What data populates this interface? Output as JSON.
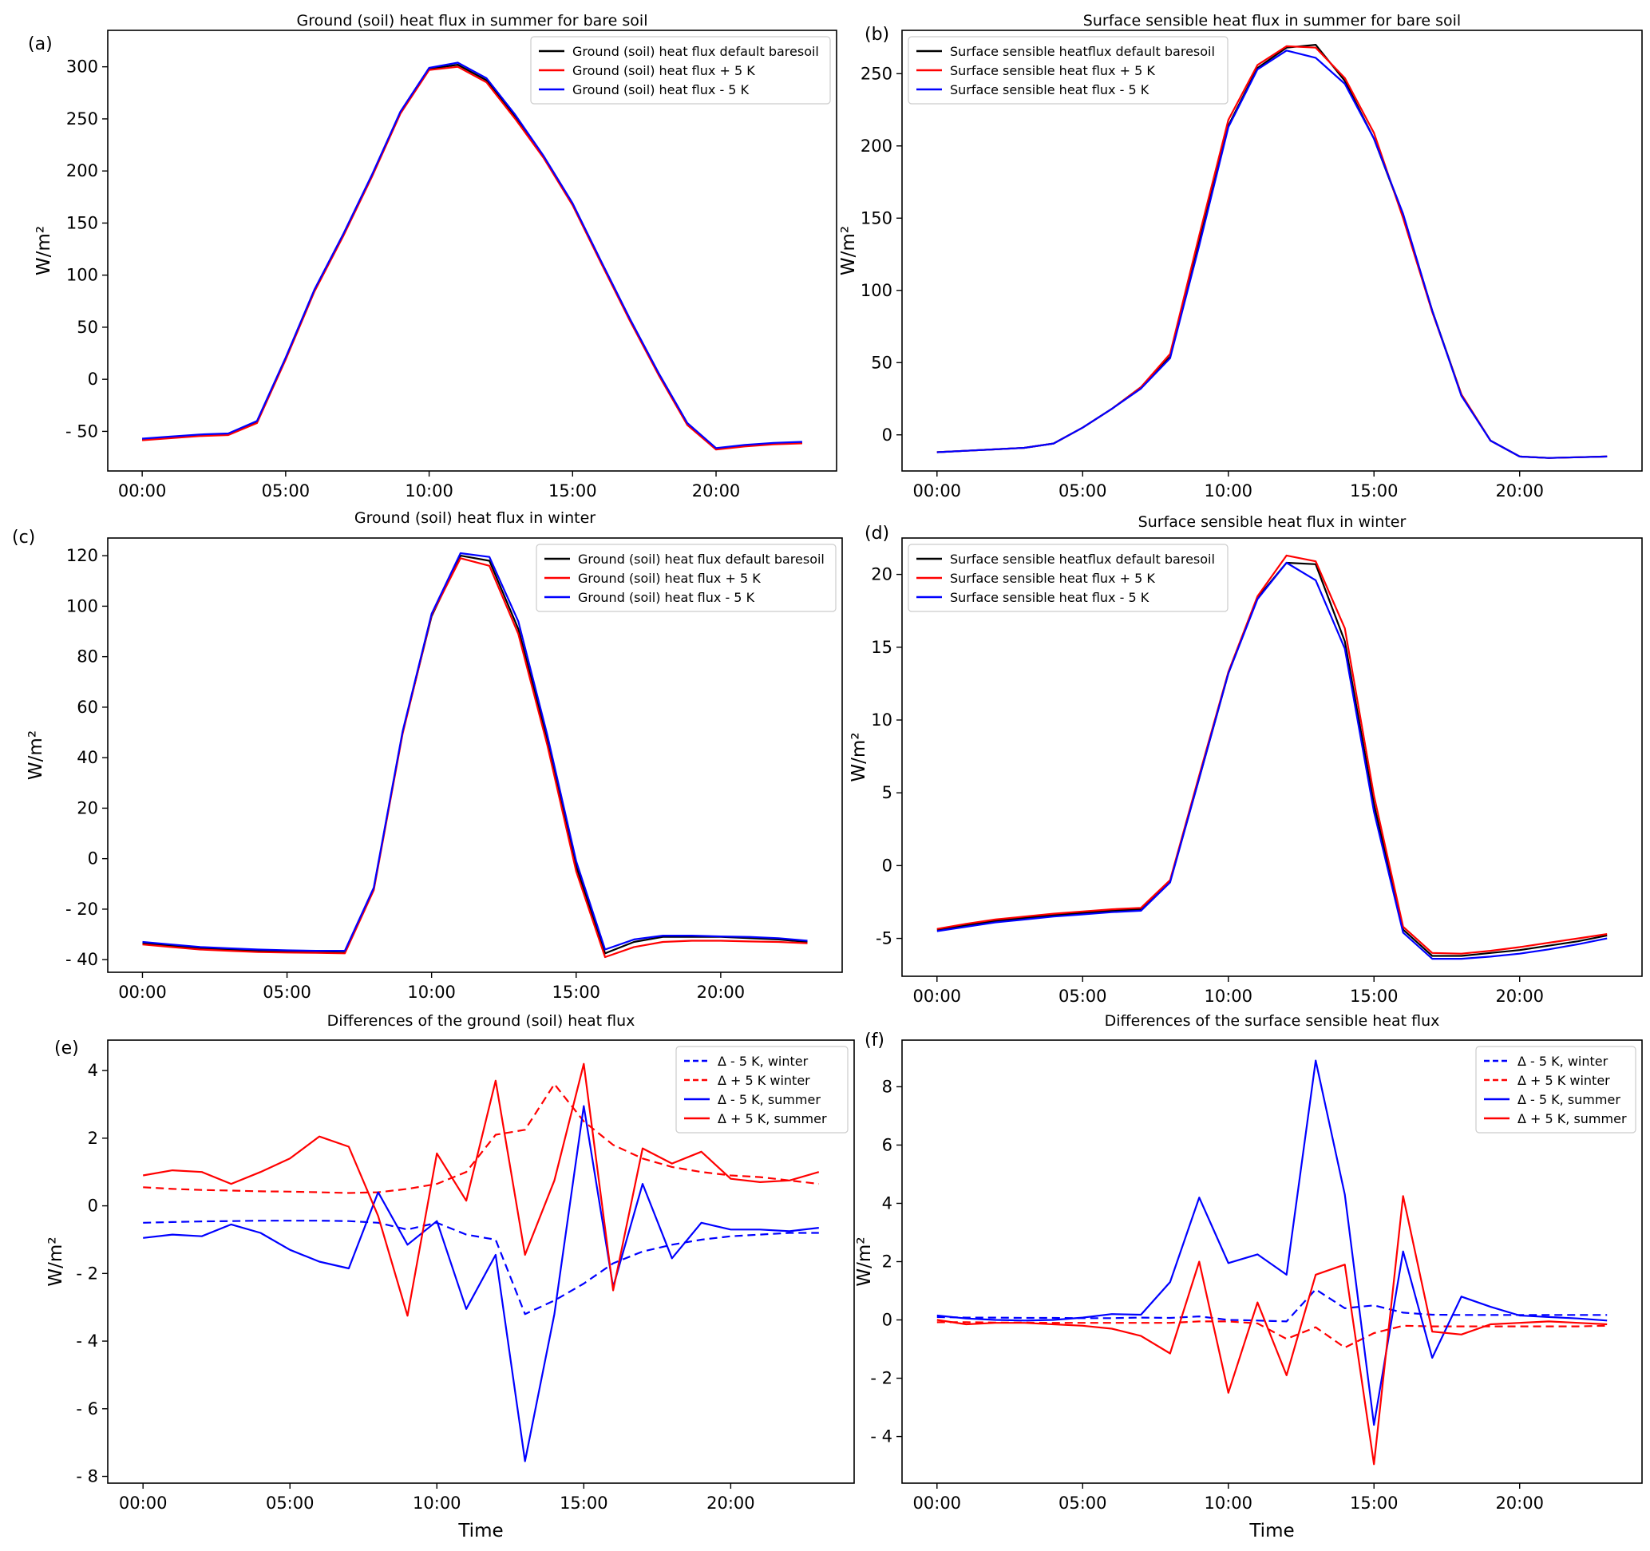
{
  "chart_data": [
    {
      "panel": "(a)",
      "type": "line",
      "title": "Ground (soil) heat flux in summer for bare soil",
      "ylabel": "W/m²",
      "xlabel": "",
      "xlim": [
        -1.2,
        24.2
      ],
      "ylim": [
        -88,
        335
      ],
      "x": [
        0,
        1,
        2,
        3,
        4,
        5,
        6,
        7,
        8,
        9,
        10,
        11,
        12,
        13,
        14,
        15,
        16,
        17,
        18,
        19,
        20,
        21,
        22,
        23
      ],
      "xticks": [
        0,
        5,
        10,
        15,
        20
      ],
      "xtick_labels": [
        "00:00",
        "05:00",
        "10:00",
        "15:00",
        "20:00"
      ],
      "yticks": [
        -50,
        0,
        50,
        100,
        150,
        200,
        250,
        300
      ],
      "ytick_labels": [
        "- 50",
        "0",
        "50",
        "100",
        "150",
        "200",
        "250",
        "300"
      ],
      "legend_position": "top-right",
      "grid": false,
      "series": [
        {
          "name": "Ground (soil) heat flux default baresoil",
          "color": "#000000",
          "dash": "",
          "values": [
            -58,
            -56,
            -54,
            -53,
            -41,
            20,
            85,
            138,
            195,
            256,
            298,
            302,
            287,
            252,
            213,
            168,
            112,
            57,
            5,
            -43,
            -67,
            -64,
            -62,
            -61
          ]
        },
        {
          "name": "Ground (soil) heat flux + 5 K",
          "color": "#ff0000",
          "dash": "",
          "values": [
            -58.5,
            -56.5,
            -54.5,
            -53.5,
            -42,
            19,
            84,
            137,
            194,
            255,
            297,
            300,
            285,
            250,
            212,
            167,
            111,
            56,
            4,
            -44,
            -67.5,
            -64.5,
            -62.5,
            -61.5
          ]
        },
        {
          "name": "Ground (soil) heat flux - 5 K",
          "color": "#0000ff",
          "dash": "",
          "values": [
            -57,
            -55,
            -53,
            -52,
            -40,
            21,
            86,
            139,
            196,
            257,
            299,
            304,
            289,
            254,
            214,
            169,
            113,
            58,
            6,
            -42,
            -66,
            -63,
            -61,
            -60
          ]
        }
      ]
    },
    {
      "panel": "(b)",
      "type": "line",
      "title": "Surface sensible heat flux in summer for bare soil",
      "ylabel": "W/m²",
      "xlabel": "",
      "xlim": [
        -1.2,
        24.2
      ],
      "ylim": [
        -25,
        280
      ],
      "x": [
        0,
        1,
        2,
        3,
        4,
        5,
        6,
        7,
        8,
        9,
        10,
        11,
        12,
        13,
        14,
        15,
        16,
        17,
        18,
        19,
        20,
        21,
        22,
        23
      ],
      "xticks": [
        0,
        5,
        10,
        15,
        20
      ],
      "xtick_labels": [
        "00:00",
        "05:00",
        "10:00",
        "15:00",
        "20:00"
      ],
      "yticks": [
        0,
        50,
        100,
        150,
        200,
        250
      ],
      "ytick_labels": [
        "0",
        "50",
        "100",
        "200",
        "250"
      ],
      "ytick_labels_full": [
        "0",
        "50",
        "100",
        "150",
        "200",
        "250"
      ],
      "legend_position": "top-left",
      "grid": false,
      "series": [
        {
          "name": "Surface sensible heatflux default baresoil",
          "color": "#000000",
          "dash": "",
          "values": [
            -12,
            -11,
            -10,
            -9,
            -6,
            5,
            18,
            33,
            54,
            134,
            214,
            254,
            268,
            270,
            245,
            205,
            152,
            86,
            28,
            -4,
            -15,
            -16,
            -15.5,
            -15
          ]
        },
        {
          "name": "Surface sensible heat flux + 5 K",
          "color": "#ff0000",
          "dash": "",
          "values": [
            -12,
            -11,
            -10,
            -9,
            -6,
            5,
            18,
            33,
            56,
            138,
            218,
            256,
            269,
            268,
            247,
            209,
            150,
            85,
            28,
            -4,
            -15,
            -16,
            -15.5,
            -15
          ]
        },
        {
          "name": "Surface sensible heat flux - 5 K",
          "color": "#0000ff",
          "dash": "",
          "values": [
            -12,
            -11,
            -10,
            -9,
            -6,
            5,
            18,
            32,
            53,
            131,
            213,
            253,
            266,
            261,
            243,
            205,
            153,
            86,
            27,
            -4,
            -15,
            -16,
            -15.5,
            -15
          ]
        }
      ]
    },
    {
      "panel": "(c)",
      "type": "line",
      "title": "Ground (soil) heat flux in winter",
      "ylabel": "W/m²",
      "xlabel": "",
      "xlim": [
        -1.2,
        24.2
      ],
      "ylim": [
        -45,
        127
      ],
      "x": [
        0,
        1,
        2,
        3,
        4,
        5,
        6,
        7,
        8,
        9,
        10,
        11,
        12,
        13,
        14,
        15,
        16,
        17,
        18,
        19,
        20,
        21,
        22,
        23
      ],
      "xticks": [
        0,
        5,
        10,
        15,
        20
      ],
      "xtick_labels": [
        "00:00",
        "05:00",
        "10:00",
        "15:00",
        "20:00"
      ],
      "yticks": [
        -40,
        -20,
        0,
        20,
        40,
        60,
        80,
        100,
        120
      ],
      "ytick_labels": [
        "- 40",
        "- 20",
        "0",
        "20",
        "40",
        "60",
        "80",
        "100",
        "120"
      ],
      "legend_position": "top-right",
      "grid": false,
      "series": [
        {
          "name": "Ground (soil) heat flux default baresoil",
          "color": "#000000",
          "dash": "",
          "values": [
            -33.5,
            -34.5,
            -35.5,
            -36,
            -36.5,
            -36.8,
            -37,
            -37.2,
            -12,
            50,
            96,
            120,
            118,
            91,
            47,
            -3,
            -37.5,
            -33,
            -31,
            -31,
            -31,
            -31.5,
            -32,
            -33
          ]
        },
        {
          "name": "Ground (soil) heat flux + 5 K",
          "color": "#ff0000",
          "dash": "",
          "values": [
            -34,
            -35,
            -36,
            -36.5,
            -37,
            -37.2,
            -37.3,
            -37.5,
            -12.5,
            49.5,
            96.5,
            119,
            116,
            89,
            45,
            -5,
            -39,
            -35,
            -33,
            -32.5,
            -32.5,
            -32.8,
            -33,
            -33.5
          ]
        },
        {
          "name": "Ground (soil) heat flux - 5 K",
          "color": "#0000ff",
          "dash": "",
          "values": [
            -33,
            -34,
            -35,
            -35.5,
            -36,
            -36.3,
            -36.5,
            -36.5,
            -11.5,
            50.5,
            97,
            121,
            119.5,
            94,
            49,
            -1,
            -36,
            -32,
            -30.5,
            -30.5,
            -30.8,
            -31,
            -31.5,
            -32.5
          ]
        }
      ]
    },
    {
      "panel": "(d)",
      "type": "line",
      "title": "Surface sensible heat flux in winter",
      "ylabel": "W/m²",
      "xlabel": "",
      "xlim": [
        -1.2,
        24.2
      ],
      "ylim": [
        -7.6,
        22.5
      ],
      "x": [
        0,
        1,
        2,
        3,
        4,
        5,
        6,
        7,
        8,
        9,
        10,
        11,
        12,
        13,
        14,
        15,
        16,
        17,
        18,
        19,
        20,
        21,
        22,
        23
      ],
      "xticks": [
        0,
        5,
        10,
        15,
        20
      ],
      "xtick_labels": [
        "00:00",
        "05:00",
        "10:00",
        "15:00",
        "20:00"
      ],
      "yticks": [
        -5,
        0,
        5,
        10,
        15,
        20
      ],
      "ytick_labels": [
        "-5",
        "0",
        "5",
        "10",
        "15",
        "20"
      ],
      "legend_position": "top-left",
      "grid": false,
      "series": [
        {
          "name": "Surface sensible heatflux default baresoil",
          "color": "#000000",
          "dash": "",
          "values": [
            -4.4,
            -4.1,
            -3.8,
            -3.6,
            -3.4,
            -3.25,
            -3.1,
            -3.0,
            -1.1,
            6.0,
            13.2,
            18.4,
            20.8,
            20.7,
            15.4,
            4.2,
            -4.4,
            -6.2,
            -6.2,
            -6.0,
            -5.8,
            -5.5,
            -5.2,
            -4.8
          ]
        },
        {
          "name": "Surface sensible heat flux + 5 K",
          "color": "#ff0000",
          "dash": "",
          "values": [
            -4.35,
            -4.0,
            -3.7,
            -3.5,
            -3.3,
            -3.15,
            -3.0,
            -2.9,
            -1.0,
            6.2,
            13.3,
            18.5,
            21.3,
            20.9,
            16.3,
            4.8,
            -4.2,
            -6.0,
            -6.05,
            -5.85,
            -5.6,
            -5.3,
            -5.0,
            -4.7
          ]
        },
        {
          "name": "Surface sensible heat flux - 5 K",
          "color": "#0000ff",
          "dash": "",
          "values": [
            -4.5,
            -4.2,
            -3.9,
            -3.7,
            -3.5,
            -3.35,
            -3.2,
            -3.1,
            -1.15,
            6.0,
            13.2,
            18.3,
            20.8,
            19.6,
            14.9,
            3.7,
            -4.6,
            -6.4,
            -6.4,
            -6.25,
            -6.05,
            -5.75,
            -5.4,
            -5.0
          ]
        }
      ]
    },
    {
      "panel": "(e)",
      "type": "line",
      "title": "Differences of the ground (soil) heat flux",
      "ylabel": "W/m²",
      "xlabel": "Time",
      "xlim": [
        -1.2,
        24.2
      ],
      "ylim": [
        -8.2,
        4.9
      ],
      "x": [
        0,
        1,
        2,
        3,
        4,
        5,
        6,
        7,
        8,
        9,
        10,
        11,
        12,
        13,
        14,
        15,
        16,
        17,
        18,
        19,
        20,
        21,
        22,
        23
      ],
      "xticks": [
        0,
        5,
        10,
        15,
        20
      ],
      "xtick_labels": [
        "00:00",
        "05:00",
        "10:00",
        "15:00",
        "20:00"
      ],
      "yticks": [
        -8,
        -6,
        -4,
        -2,
        0,
        2,
        4
      ],
      "ytick_labels": [
        "- 8",
        "- 6",
        "- 4",
        "- 2",
        "0",
        "2",
        "4"
      ],
      "legend_position": "top-right",
      "grid": false,
      "series": [
        {
          "name": "Δ - 5 K, winter",
          "color": "#0000ff",
          "dash": "10,6",
          "values": [
            -0.5,
            -0.48,
            -0.46,
            -0.45,
            -0.44,
            -0.44,
            -0.44,
            -0.45,
            -0.5,
            -0.7,
            -0.5,
            -0.85,
            -1.0,
            -3.2,
            -2.8,
            -2.3,
            -1.7,
            -1.35,
            -1.15,
            -1.0,
            -0.9,
            -0.85,
            -0.8,
            -0.8
          ]
        },
        {
          "name": "Δ + 5 K winter",
          "color": "#ff0000",
          "dash": "10,6",
          "values": [
            0.55,
            0.5,
            0.47,
            0.45,
            0.43,
            0.42,
            0.4,
            0.38,
            0.4,
            0.5,
            0.65,
            1.0,
            2.1,
            2.25,
            3.6,
            2.5,
            1.8,
            1.4,
            1.15,
            1.0,
            0.9,
            0.85,
            0.75,
            0.65
          ]
        },
        {
          "name": "Δ - 5 K, summer",
          "color": "#0000ff",
          "dash": "",
          "values": [
            -0.95,
            -0.85,
            -0.9,
            -0.55,
            -0.8,
            -1.3,
            -1.65,
            -1.85,
            0.4,
            -1.15,
            -0.45,
            -3.05,
            -1.45,
            -7.55,
            -3.2,
            2.95,
            -2.4,
            0.65,
            -1.55,
            -0.5,
            -0.7,
            -0.7,
            -0.75,
            -0.65
          ]
        },
        {
          "name": "Δ + 5 K, summer",
          "color": "#ff0000",
          "dash": "",
          "values": [
            0.9,
            1.05,
            1.0,
            0.65,
            1.0,
            1.4,
            2.05,
            1.75,
            -0.3,
            -3.25,
            1.55,
            0.15,
            3.7,
            -1.45,
            0.75,
            4.2,
            -2.5,
            1.7,
            1.25,
            1.6,
            0.8,
            0.7,
            0.75,
            1.0
          ]
        }
      ]
    },
    {
      "panel": "(f)",
      "type": "line",
      "title": "Differences of the surface sensible heat flux",
      "ylabel": "W/m²",
      "xlabel": "Time",
      "xlim": [
        -1.2,
        24.2
      ],
      "ylim": [
        -5.6,
        9.6
      ],
      "x": [
        0,
        1,
        2,
        3,
        4,
        5,
        6,
        7,
        8,
        9,
        10,
        11,
        12,
        13,
        14,
        15,
        16,
        17,
        18,
        19,
        20,
        21,
        22,
        23
      ],
      "xticks": [
        0,
        5,
        10,
        15,
        20
      ],
      "xtick_labels": [
        "00:00",
        "05:00",
        "10:00",
        "15:00",
        "20:00"
      ],
      "yticks": [
        -4,
        -2,
        0,
        2,
        4,
        6,
        8
      ],
      "ytick_labels": [
        "- 4",
        "- 2",
        "0",
        "2",
        "4",
        "6",
        "8"
      ],
      "legend_position": "top-right",
      "grid": false,
      "series": [
        {
          "name": "Δ - 5 K, winter",
          "color": "#0000ff",
          "dash": "10,6",
          "values": [
            0.1,
            0.08,
            0.08,
            0.07,
            0.07,
            0.06,
            0.06,
            0.08,
            0.07,
            0.12,
            0.0,
            -0.02,
            -0.05,
            1.05,
            0.4,
            0.5,
            0.25,
            0.18,
            0.17,
            0.17,
            0.17,
            0.17,
            0.17,
            0.17
          ]
        },
        {
          "name": "Δ + 5 K winter",
          "color": "#ff0000",
          "dash": "10,6",
          "values": [
            -0.08,
            -0.08,
            -0.09,
            -0.09,
            -0.1,
            -0.1,
            -0.1,
            -0.1,
            -0.1,
            -0.05,
            -0.05,
            -0.12,
            -0.65,
            -0.25,
            -0.95,
            -0.45,
            -0.2,
            -0.22,
            -0.22,
            -0.22,
            -0.22,
            -0.22,
            -0.22,
            -0.2
          ]
        },
        {
          "name": "Δ - 5 K, summer",
          "color": "#0000ff",
          "dash": "",
          "values": [
            0.15,
            0.05,
            0.0,
            -0.02,
            0.0,
            0.08,
            0.2,
            0.18,
            1.3,
            4.2,
            1.95,
            2.25,
            1.55,
            8.9,
            4.3,
            -3.6,
            2.35,
            -1.3,
            0.8,
            0.45,
            0.15,
            0.1,
            0.05,
            -0.02
          ]
        },
        {
          "name": "Δ + 5 K, summer",
          "color": "#ff0000",
          "dash": "",
          "values": [
            0.0,
            -0.15,
            -0.1,
            -0.1,
            -0.15,
            -0.2,
            -0.3,
            -0.55,
            -1.15,
            2.0,
            -2.5,
            0.6,
            -1.9,
            1.55,
            1.9,
            -4.95,
            4.25,
            -0.4,
            -0.5,
            -0.15,
            -0.1,
            -0.05,
            -0.1,
            -0.15
          ]
        }
      ]
    }
  ]
}
